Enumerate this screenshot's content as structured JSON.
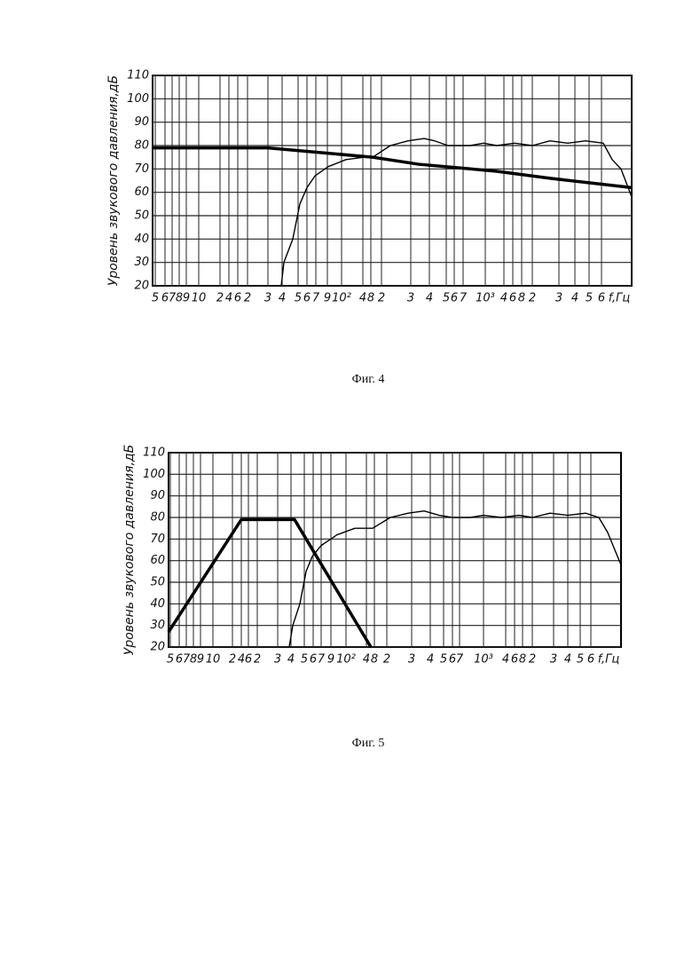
{
  "chart_data": [
    {
      "type": "line",
      "caption": "Фиг. 4",
      "ylabel": "Уровень звукового давления,дБ",
      "xlabel": "f,Гц",
      "ylim": [
        20,
        110
      ],
      "yticks": [
        20,
        30,
        40,
        50,
        60,
        70,
        80,
        90,
        100,
        110
      ],
      "xlim": [
        0,
        540
      ],
      "xticks": [
        {
          "value": 3,
          "label": "5"
        },
        {
          "value": 14,
          "label": "6"
        },
        {
          "value": 22,
          "label": "7"
        },
        {
          "value": 30,
          "label": "8"
        },
        {
          "value": 38,
          "label": "9"
        },
        {
          "value": 52,
          "label": "10"
        },
        {
          "value": 76,
          "label": "2"
        },
        {
          "value": 86,
          "label": "4"
        },
        {
          "value": 96,
          "label": "6"
        },
        {
          "value": 107,
          "label": "2"
        },
        {
          "value": 130,
          "label": "3"
        },
        {
          "value": 146,
          "label": "4"
        },
        {
          "value": 164,
          "label": "5"
        },
        {
          "value": 174,
          "label": "6"
        },
        {
          "value": 184,
          "label": "7"
        },
        {
          "value": 197,
          "label": "9"
        },
        {
          "value": 213,
          "label": "10²"
        },
        {
          "value": 237,
          "label": "4"
        },
        {
          "value": 246,
          "label": "8"
        },
        {
          "value": 258,
          "label": "2"
        },
        {
          "value": 291,
          "label": "3"
        },
        {
          "value": 312,
          "label": "4"
        },
        {
          "value": 331,
          "label": "5"
        },
        {
          "value": 340,
          "label": "6"
        },
        {
          "value": 350,
          "label": "7"
        },
        {
          "value": 375,
          "label": "10³"
        },
        {
          "value": 396,
          "label": "4"
        },
        {
          "value": 406,
          "label": "6"
        },
        {
          "value": 416,
          "label": "8"
        },
        {
          "value": 428,
          "label": "2"
        },
        {
          "value": 458,
          "label": "3"
        },
        {
          "value": 476,
          "label": "4"
        },
        {
          "value": 492,
          "label": "5"
        },
        {
          "value": 506,
          "label": "6"
        }
      ],
      "grid": true,
      "series": [
        {
          "color": "#000000",
          "x": [
            0,
            130,
            248,
            300,
            388,
            448,
            540
          ],
          "values": [
            79,
            79,
            75,
            72,
            69,
            66,
            62
          ]
        },
        {
          "color": "#000000",
          "x": [
            145,
            148,
            158,
            166,
            174,
            183,
            198,
            218,
            238,
            248,
            268,
            288,
            306,
            318,
            333,
            358,
            373,
            388,
            408,
            428,
            448,
            468,
            488,
            508,
            518,
            528,
            540
          ],
          "values": [
            20,
            30,
            40,
            55,
            62,
            67,
            71,
            74,
            75,
            75,
            80,
            82,
            83,
            82,
            80,
            80,
            81,
            80,
            81,
            80,
            82,
            81,
            82,
            81,
            74,
            70,
            58
          ]
        }
      ]
    },
    {
      "type": "line",
      "caption": "Фиг. 5",
      "ylabel": "Уровень звукового давления,дБ",
      "xlabel": "f,Гц",
      "ylim": [
        20,
        110
      ],
      "yticks": [
        20,
        30,
        40,
        50,
        60,
        70,
        80,
        90,
        100,
        110
      ],
      "xlim": [
        0,
        510
      ],
      "xticks": [
        {
          "value": 2,
          "label": "5"
        },
        {
          "value": 12,
          "label": "6"
        },
        {
          "value": 20,
          "label": "7"
        },
        {
          "value": 28,
          "label": "8"
        },
        {
          "value": 36,
          "label": "9"
        },
        {
          "value": 50,
          "label": "10"
        },
        {
          "value": 72,
          "label": "2"
        },
        {
          "value": 82,
          "label": "4"
        },
        {
          "value": 90,
          "label": "6"
        },
        {
          "value": 100,
          "label": "2"
        },
        {
          "value": 123,
          "label": "3"
        },
        {
          "value": 138,
          "label": "4"
        },
        {
          "value": 153,
          "label": "5"
        },
        {
          "value": 163,
          "label": "6"
        },
        {
          "value": 172,
          "label": "7"
        },
        {
          "value": 183,
          "label": "9"
        },
        {
          "value": 200,
          "label": "10²"
        },
        {
          "value": 223,
          "label": "4"
        },
        {
          "value": 232,
          "label": "8"
        },
        {
          "value": 246,
          "label": "2"
        },
        {
          "value": 274,
          "label": "3"
        },
        {
          "value": 295,
          "label": "4"
        },
        {
          "value": 310,
          "label": "5"
        },
        {
          "value": 320,
          "label": "6"
        },
        {
          "value": 328,
          "label": "7"
        },
        {
          "value": 355,
          "label": "10³"
        },
        {
          "value": 380,
          "label": "4"
        },
        {
          "value": 390,
          "label": "6"
        },
        {
          "value": 399,
          "label": "8"
        },
        {
          "value": 410,
          "label": "2"
        },
        {
          "value": 434,
          "label": "3"
        },
        {
          "value": 450,
          "label": "4"
        },
        {
          "value": 464,
          "label": "5"
        },
        {
          "value": 476,
          "label": "6"
        }
      ],
      "grid": true,
      "series": [
        {
          "color": "#000000",
          "x": [
            0,
            82,
            142,
            228
          ],
          "values": [
            27,
            79,
            79,
            20
          ]
        },
        {
          "color": "#000000",
          "x": [
            136,
            140,
            148,
            155,
            162,
            172,
            190,
            210,
            230,
            250,
            270,
            288,
            305,
            320,
            340,
            355,
            375,
            395,
            410,
            430,
            450,
            470,
            485,
            495,
            510
          ],
          "values": [
            20,
            30,
            40,
            55,
            62,
            67,
            72,
            75,
            75,
            80,
            82,
            83,
            81,
            80,
            80,
            81,
            80,
            81,
            80,
            82,
            81,
            82,
            80,
            73,
            58
          ]
        }
      ]
    }
  ]
}
